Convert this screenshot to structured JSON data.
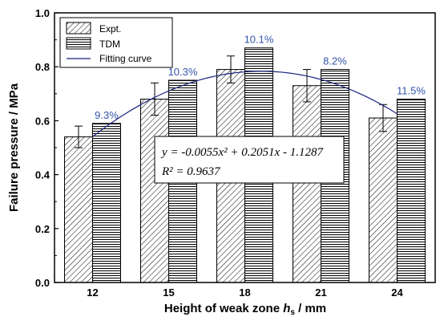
{
  "chart_data": {
    "type": "bar",
    "categories": [
      "12",
      "15",
      "18",
      "21",
      "24"
    ],
    "xlabel_main": "Height of weak zone ",
    "xlabel_var": "h",
    "xlabel_sub": "s",
    "xlabel_unit": " / mm",
    "ylabel": "Failure pressure / MPa",
    "ylim": [
      0.0,
      1.0
    ],
    "yticks": [
      "0.0",
      "0.2",
      "0.4",
      "0.6",
      "0.8",
      "1.0"
    ],
    "series": [
      {
        "name": "Expt.",
        "values": [
          0.54,
          0.68,
          0.79,
          0.73,
          0.61
        ],
        "errors": [
          0.04,
          0.06,
          0.05,
          0.06,
          0.05
        ],
        "pattern": "diagonal"
      },
      {
        "name": "TDM",
        "values": [
          0.59,
          0.75,
          0.87,
          0.79,
          0.68
        ],
        "pattern": "horizontal"
      }
    ],
    "fitting_curve": {
      "name": "Fitting curve",
      "a": -0.0055,
      "b": 0.2051,
      "c": -1.1287,
      "color": "#1a237e"
    },
    "annotations": [
      "9.3%",
      "10.3%",
      "10.1%",
      "8.2%",
      "11.5%"
    ],
    "annotation_color": "#3355aa",
    "equation": {
      "line1": "y = -0.0055x² + 0.2051x - 1.1287",
      "line2": "R² = 0.9637"
    },
    "legend_position": "top-left",
    "grid": false
  }
}
